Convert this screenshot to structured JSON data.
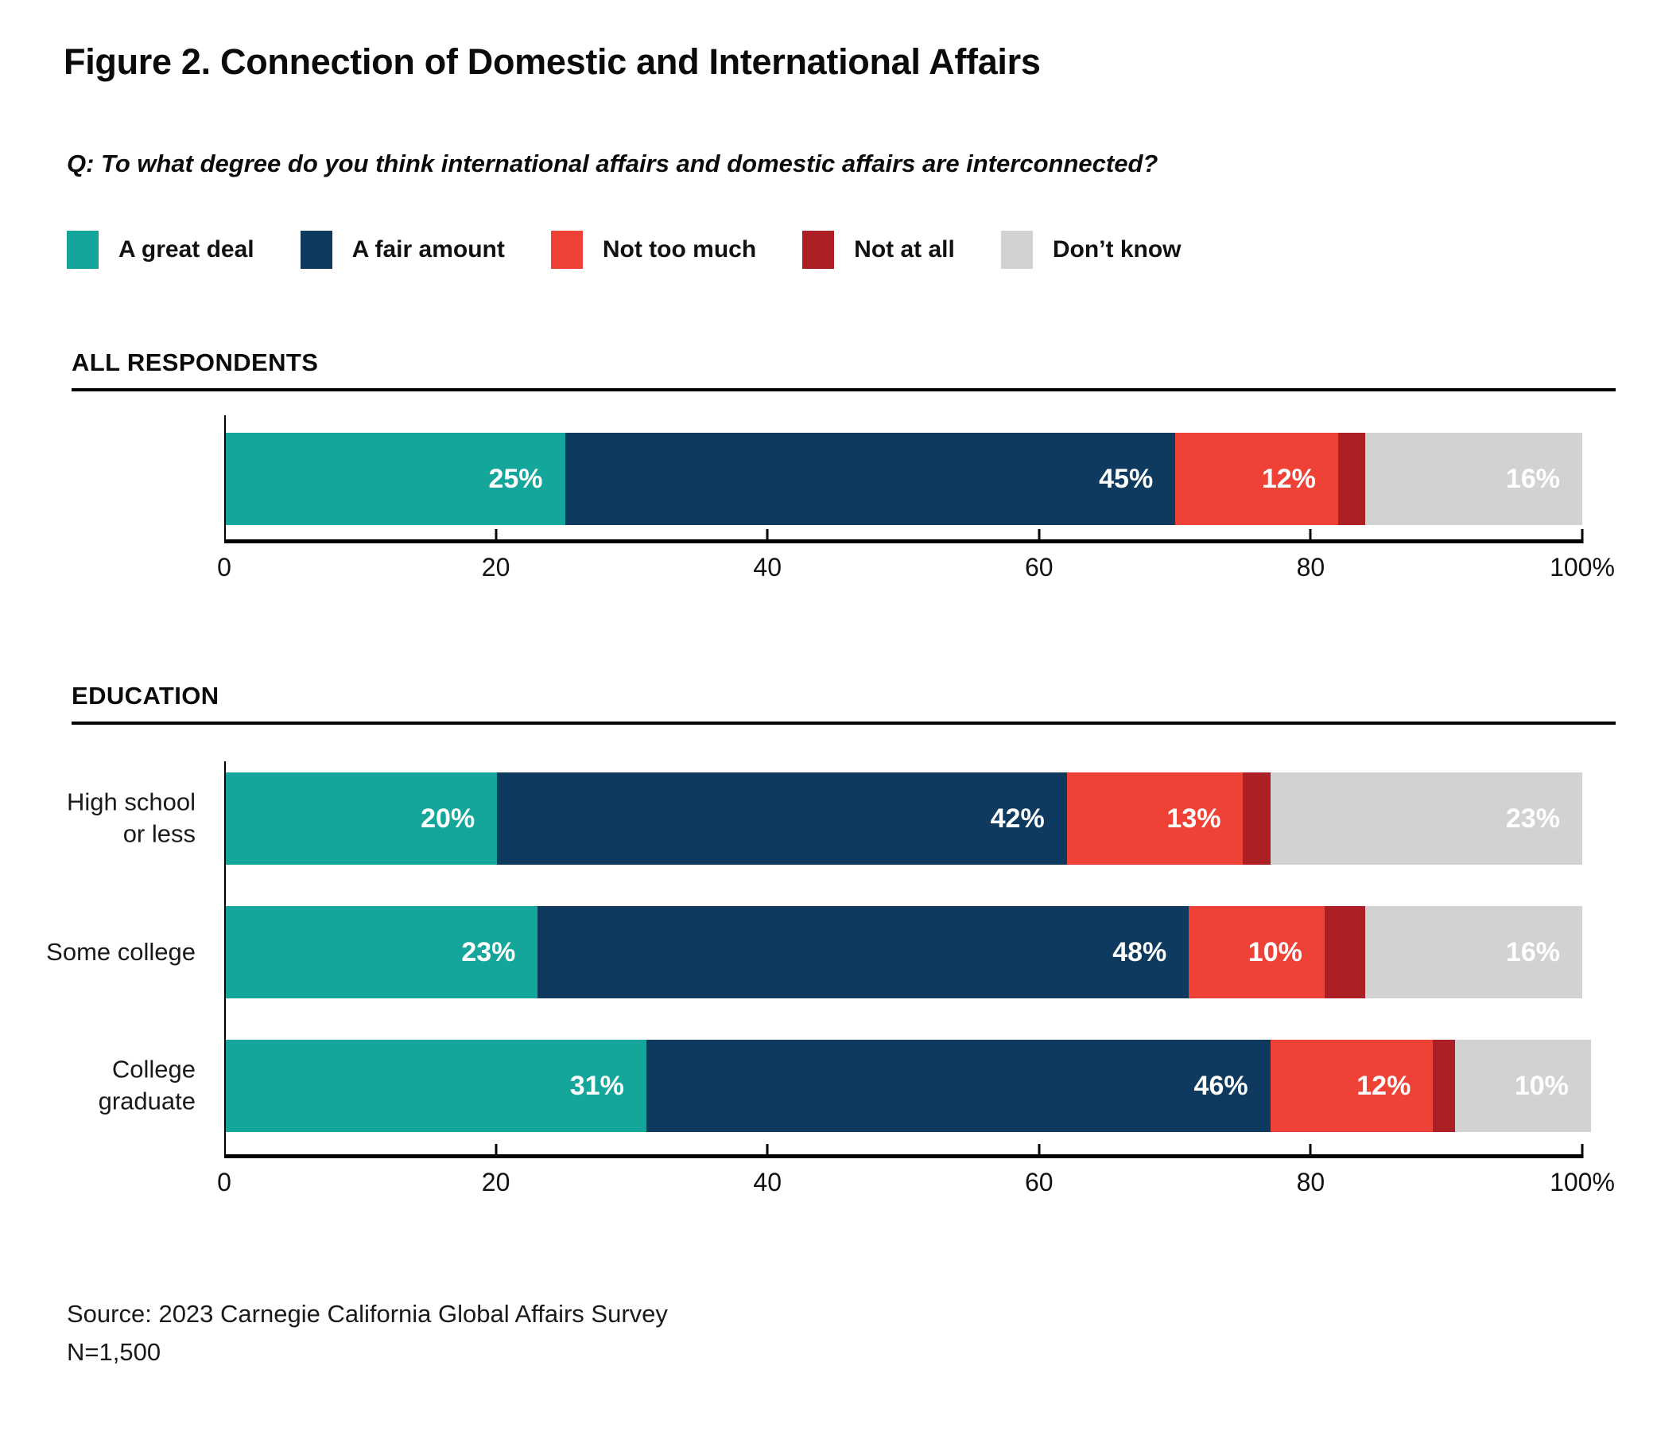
{
  "title": "Figure 2. Connection of Domestic and International Affairs",
  "question": "Q: To what degree do you think international affairs and domestic affairs are interconnected?",
  "colors": {
    "a_great_deal": "#14A69B",
    "a_fair_amount": "#0D3A5E",
    "not_too_much": "#EE4237",
    "not_at_all": "#AC1F24",
    "dont_know": "#D2D2D2",
    "axis": "#000000"
  },
  "legend": [
    {
      "label": "A great deal",
      "color": "#14A69B"
    },
    {
      "label": "A fair amount",
      "color": "#0D3A5E"
    },
    {
      "label": "Not too much",
      "color": "#EE4237"
    },
    {
      "label": "Not at all",
      "color": "#AC1F24"
    },
    {
      "label": "Don’t know",
      "color": "#D2D2D2"
    }
  ],
  "sections": [
    {
      "heading": "ALL RESPONDENTS"
    },
    {
      "heading": "EDUCATION"
    }
  ],
  "chart_data": [
    {
      "type": "bar",
      "orientation": "horizontal",
      "stacked": true,
      "title": "ALL RESPONDENTS",
      "categories": [
        []
      ],
      "series": [
        {
          "name": "A great deal",
          "color": "#14A69B",
          "values": [
            25
          ]
        },
        {
          "name": "A fair amount",
          "color": "#0D3A5E",
          "values": [
            45
          ]
        },
        {
          "name": "Not too much",
          "color": "#EE4237",
          "values": [
            12
          ]
        },
        {
          "name": "Not at all",
          "color": "#AC1F24",
          "values": [
            2
          ]
        },
        {
          "name": "Don’t know",
          "color": "#D2D2D2",
          "values": [
            16
          ]
        }
      ],
      "xlim": [
        0,
        100
      ],
      "xticks": [
        {
          "v": 0,
          "label": "0"
        },
        {
          "v": 20,
          "label": "20"
        },
        {
          "v": 40,
          "label": "40"
        },
        {
          "v": 60,
          "label": "60"
        },
        {
          "v": 80,
          "label": "80"
        },
        {
          "v": 100,
          "label": "100%"
        }
      ],
      "value_suffix": "%",
      "grid": false,
      "legend_position": "top"
    },
    {
      "type": "bar",
      "orientation": "horizontal",
      "stacked": true,
      "title": "EDUCATION",
      "categories": [
        [
          "High school",
          "or less"
        ],
        [
          "Some college"
        ],
        [
          "College",
          "graduate"
        ]
      ],
      "series": [
        {
          "name": "A great deal",
          "color": "#14A69B",
          "values": [
            20,
            23,
            31
          ]
        },
        {
          "name": "A fair amount",
          "color": "#0D3A5E",
          "values": [
            42,
            48,
            46
          ]
        },
        {
          "name": "Not too much",
          "color": "#EE4237",
          "values": [
            13,
            10,
            12
          ]
        },
        {
          "name": "Not at all",
          "color": "#AC1F24",
          "values": [
            2,
            3,
            1
          ]
        },
        {
          "name": "Don’t know",
          "color": "#D2D2D2",
          "values": [
            23,
            16,
            10
          ]
        }
      ],
      "xlim": [
        0,
        100
      ],
      "xticks": [
        {
          "v": 0,
          "label": "0"
        },
        {
          "v": 20,
          "label": "20"
        },
        {
          "v": 40,
          "label": "40"
        },
        {
          "v": 60,
          "label": "60"
        },
        {
          "v": 80,
          "label": "80"
        },
        {
          "v": 100,
          "label": "100%"
        }
      ],
      "value_suffix": "%",
      "grid": false,
      "legend_position": "top"
    }
  ],
  "source": {
    "line1": "Source: 2023 Carnegie California Global Affairs Survey",
    "line2": "N=1,500"
  }
}
